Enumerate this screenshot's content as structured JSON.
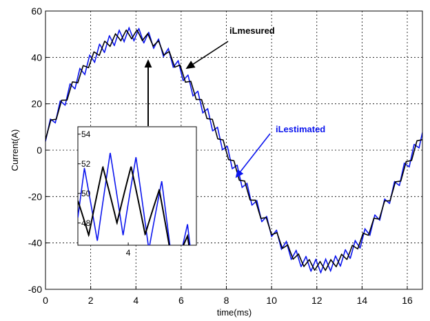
{
  "chart_data": {
    "type": "line",
    "title": "",
    "xlabel": "time(ms)",
    "ylabel": "Current(A)",
    "xlim": [
      0,
      16.67
    ],
    "ylim": [
      -60,
      60
    ],
    "x_ticks": [
      "0",
      "2",
      "4",
      "6",
      "8",
      "10",
      "12",
      "14",
      "16"
    ],
    "y_ticks": [
      "60",
      "40",
      "20",
      "0",
      "-20",
      "-40",
      "-60"
    ],
    "grid": true,
    "fundamental": {
      "amplitude_A": 50,
      "period_ms": 16.67,
      "phase_ms": -0.35
    },
    "series": [
      {
        "name": "iLmesured",
        "color": "#000000",
        "ripple_amplitude_A": 2,
        "ripple_freq_khz": 2.1
      },
      {
        "name": "iLestimated",
        "color": "#0a14ee",
        "ripple_amplitude_A": 2.8,
        "ripple_freq_khz": 2.3
      }
    ],
    "annotations": [
      {
        "text": "iLmesured",
        "color": "#000000",
        "points_to": [
          6.2,
          35
        ]
      },
      {
        "text": "iLestimated",
        "color": "#0a14ee",
        "points_to": [
          8.4,
          -12
        ]
      }
    ],
    "inset": {
      "xlim": [
        3.15,
        5.15
      ],
      "ylim": [
        46.5,
        54.5
      ],
      "x_ticks": [
        "4"
      ],
      "y_ticks": [
        "54",
        "52",
        "50",
        "48"
      ],
      "points_to": [
        4.2,
        48
      ]
    }
  }
}
